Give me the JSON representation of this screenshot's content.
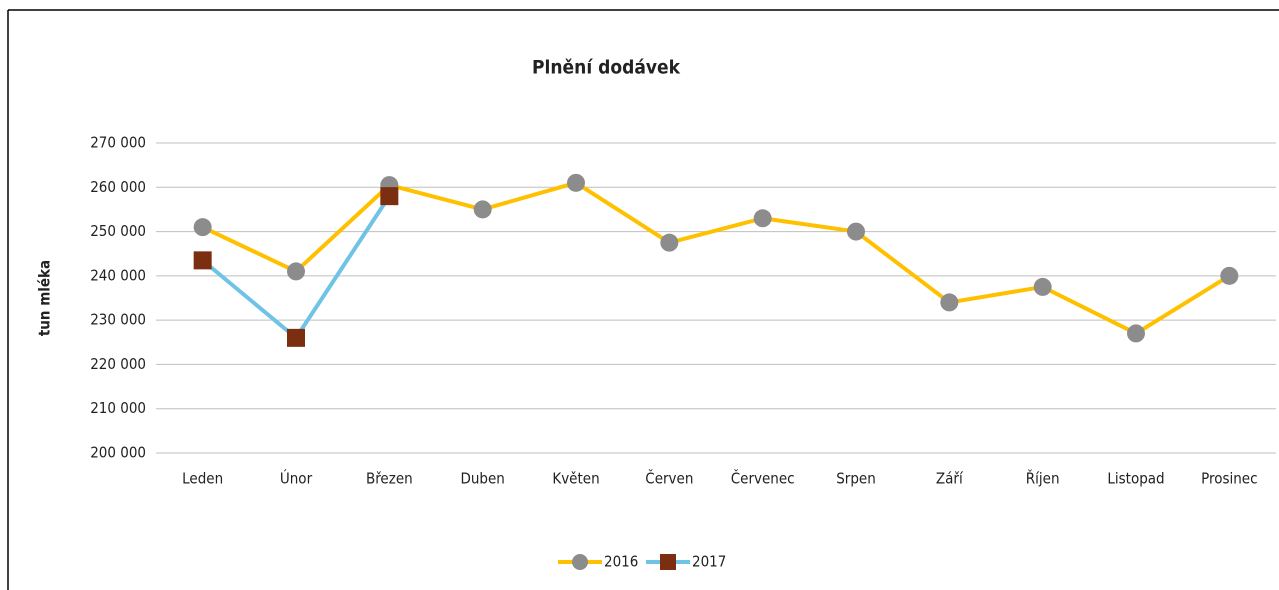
{
  "chart_data": {
    "type": "line",
    "title": "Plnění dodávek",
    "y_label": "tun mléka",
    "categories": [
      "Leden",
      "Únor",
      "Březen",
      "Duben",
      "Květen",
      "Červen",
      "Červenec",
      "Srpen",
      "Září",
      "Říjen",
      "Listopad",
      "Prosinec"
    ],
    "series": [
      {
        "name": "2016",
        "color": "#ffc000",
        "marker": "circle",
        "marker_color": "#8c8c8c",
        "values": [
          251000,
          241000,
          260500,
          255000,
          261000,
          247500,
          253000,
          250000,
          234000,
          237500,
          227000,
          240000
        ]
      },
      {
        "name": "2017",
        "color": "#6ec3e6",
        "marker": "square",
        "marker_color": "#7b2e10",
        "values": [
          243500,
          226000,
          258000,
          null,
          null,
          null,
          null,
          null,
          null,
          null,
          null,
          null
        ]
      }
    ],
    "ylim": [
      200000,
      270000
    ],
    "yticks": [
      {
        "value": 200000,
        "label": "200 000"
      },
      {
        "value": 210000,
        "label": "210 000"
      },
      {
        "value": 220000,
        "label": "220 000"
      },
      {
        "value": 230000,
        "label": "230 000"
      },
      {
        "value": 240000,
        "label": "240 000"
      },
      {
        "value": 250000,
        "label": "250 000"
      },
      {
        "value": 260000,
        "label": "260 000"
      },
      {
        "value": 270000,
        "label": "270 000"
      }
    ],
    "grid": true,
    "legend": "bottom"
  }
}
